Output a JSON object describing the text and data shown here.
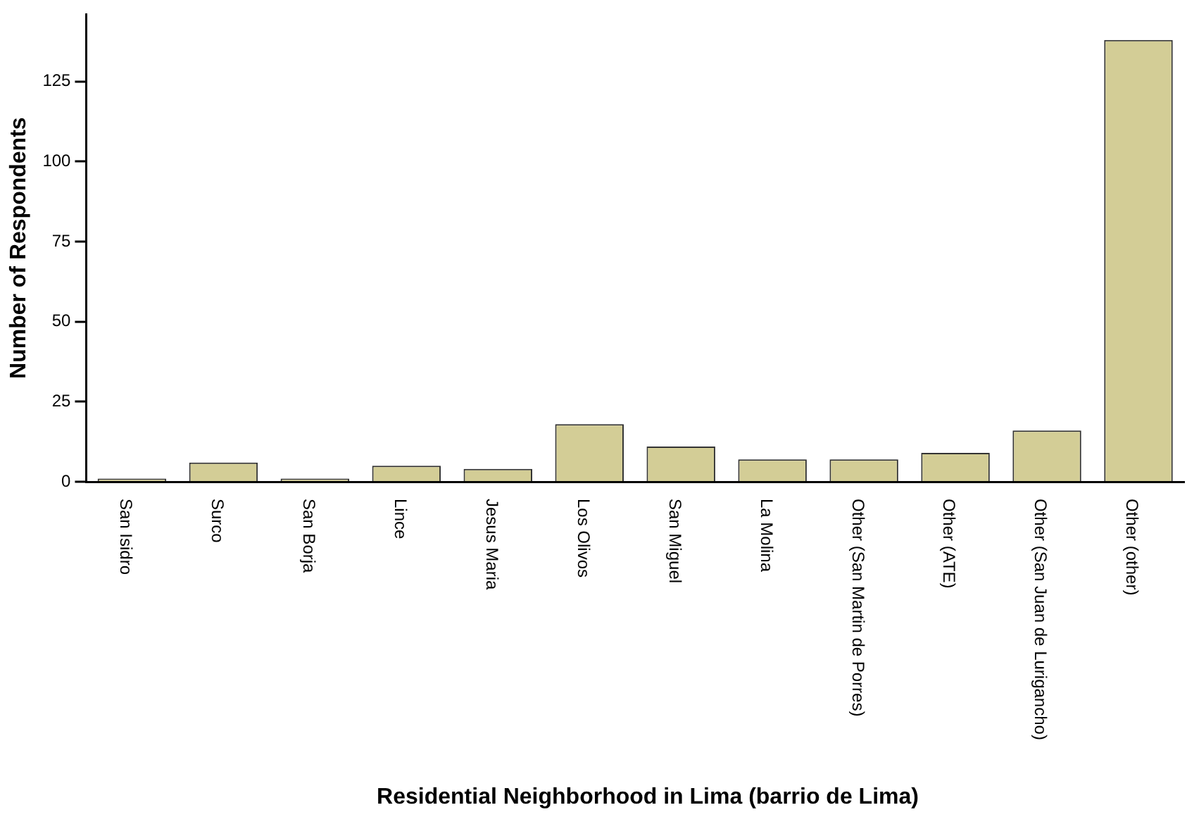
{
  "chart_data": {
    "type": "bar",
    "xlabel": "Residential Neighborhood in Lima (barrio de Lima)",
    "ylabel": "Number of Respondents",
    "categories": [
      "San Isidro",
      "Surco",
      "San Borja",
      "Lince",
      "Jesus Maria",
      "Los Olivos",
      "San Miguel",
      "La Molina",
      "Other (San Martin de Porres)",
      "Other (ATE)",
      "Other (San Juan de Lurigancho)",
      "Other (other)"
    ],
    "values": [
      1,
      6,
      1,
      5,
      4,
      18,
      11,
      7,
      7,
      9,
      16,
      138
    ],
    "color": "#d3cd96",
    "ylim": [
      0,
      146
    ],
    "yticks": [
      0,
      25,
      50,
      75,
      100,
      125
    ],
    "grid": false,
    "legend": false
  }
}
